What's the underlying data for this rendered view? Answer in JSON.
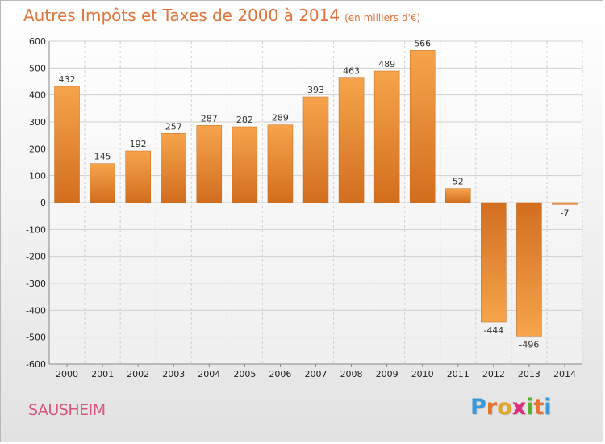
{
  "chart_data": {
    "type": "bar",
    "title": "Autres Impôts et Taxes de 2000 à 2014",
    "subtitle": "(en milliers d'€)",
    "categories": [
      "2000",
      "2001",
      "2002",
      "2003",
      "2004",
      "2005",
      "2006",
      "2007",
      "2008",
      "2009",
      "2010",
      "2011",
      "2012",
      "2013",
      "2014"
    ],
    "values": [
      432,
      145,
      192,
      257,
      287,
      282,
      289,
      393,
      463,
      489,
      566,
      52,
      -444,
      -496,
      -7
    ],
    "data_labels": [
      "432",
      "145",
      "192",
      "257",
      "287",
      "282",
      "289",
      "393",
      "463",
      "489",
      "566",
      "52",
      "-444",
      "-496",
      "-7"
    ],
    "ylim": [
      -600,
      600
    ],
    "yticks": [
      600,
      500,
      400,
      300,
      200,
      100,
      0,
      -100,
      -200,
      -300,
      -400,
      -500,
      -600
    ],
    "ytick_labels": [
      "600",
      "500",
      "400",
      "300",
      "200",
      "100",
      "0",
      "-100",
      "-200",
      "-300",
      "-400",
      "-500",
      "-600"
    ],
    "grid": true,
    "legend": "none",
    "bar_color": "#e8893a"
  },
  "footer": {
    "city": "SAUSHEIM",
    "brand_letters": [
      "P",
      "r",
      "o",
      "x",
      "i",
      "t",
      "i"
    ],
    "brand_colors": [
      "#3a9ad9",
      "#e8732c",
      "#e2a62a",
      "#d9317a",
      "#5ab031",
      "#e8732c",
      "#3a9ad9"
    ]
  }
}
